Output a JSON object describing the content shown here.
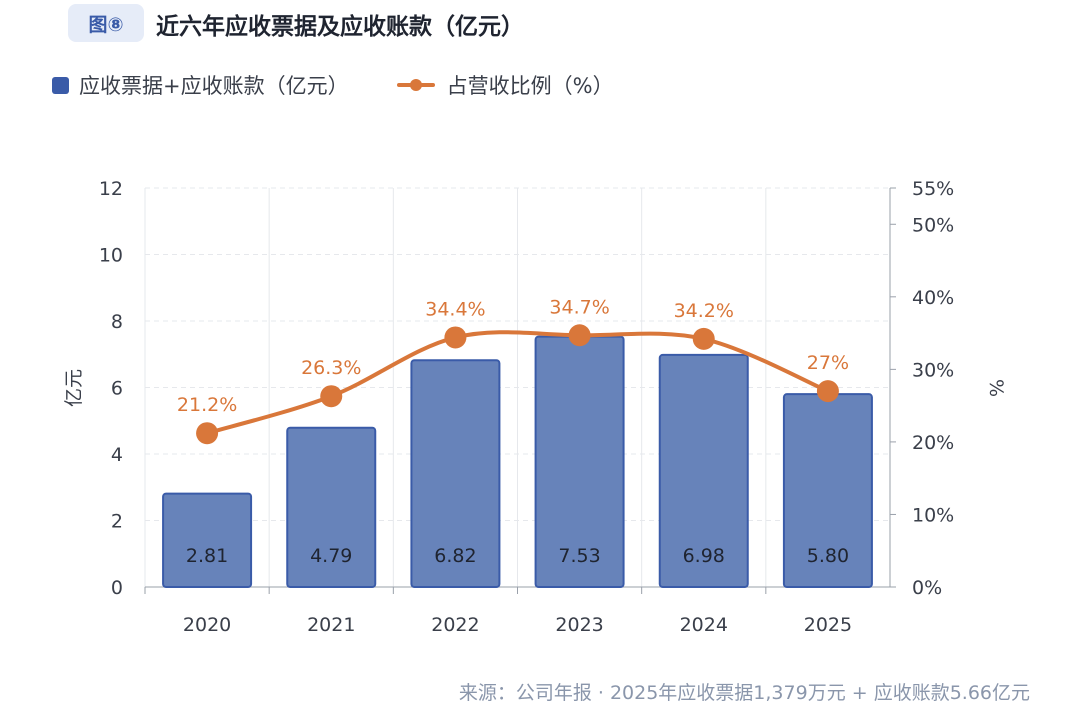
{
  "header": {
    "badge": "图⑧",
    "title": "近六年应收票据及应收账款（亿元）"
  },
  "footer": {
    "source": "来源：公司年报 · 2025年应收票据1,379万元 + 应收账款5.66亿元"
  },
  "chart_data": {
    "type": "bar+line",
    "categories": [
      "2020",
      "2021",
      "2022",
      "2023",
      "2024",
      "2025"
    ],
    "series": [
      {
        "name": "应收票据+应收账款（亿元）",
        "type": "bar",
        "axis": "left",
        "color": "#3a5ba8",
        "values": [
          2.81,
          4.79,
          6.82,
          7.53,
          6.98,
          5.8
        ],
        "labels": [
          "2.81",
          "4.79",
          "6.82",
          "7.53",
          "6.98",
          "5.80"
        ]
      },
      {
        "name": "占营收比例（%）",
        "type": "line",
        "axis": "right",
        "color": "#d9773a",
        "values": [
          21.2,
          26.3,
          34.4,
          34.7,
          34.2,
          27
        ],
        "labels": [
          "21.2%",
          "26.3%",
          "34.4%",
          "34.7%",
          "34.2%",
          "27%"
        ]
      }
    ],
    "ylabel": "亿元",
    "y2label": "%",
    "ylim": [
      0,
      12
    ],
    "yticks": [
      "0",
      "2",
      "4",
      "6",
      "8",
      "10",
      "12"
    ],
    "y2lim": [
      0,
      55
    ],
    "y2ticks": [
      "0%",
      "10%",
      "20%",
      "30%",
      "40%",
      "50%",
      "55%"
    ],
    "grid": true,
    "legend": "top-left"
  }
}
